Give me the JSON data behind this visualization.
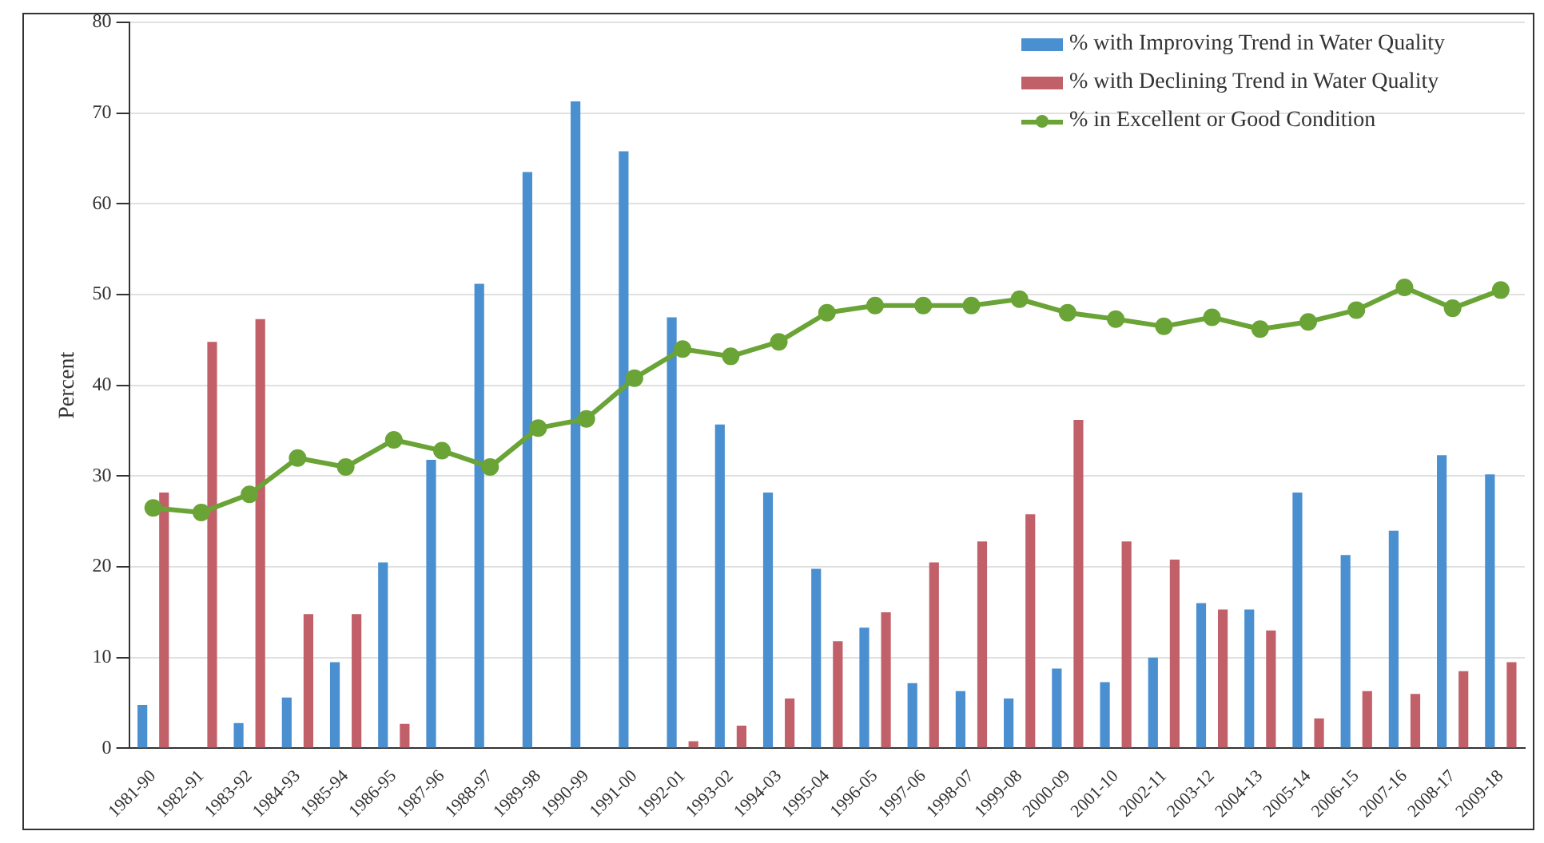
{
  "chart_data": {
    "type": "bar",
    "ylabel": "Percent",
    "categories": [
      "1981-90",
      "1982-91",
      "1983-92",
      "1984-93",
      "1985-94",
      "1986-95",
      "1987-96",
      "1988-97",
      "1989-98",
      "1990-99",
      "1991-00",
      "1992-01",
      "1993-02",
      "1994-03",
      "1995-04",
      "1996-05",
      "1997-06",
      "1998-07",
      "1999-08",
      "2000-09",
      "2001-10",
      "2002-11",
      "2003-12",
      "2004-13",
      "2005-14",
      "2006-15",
      "2007-16",
      "2008-17",
      "2009-18"
    ],
    "series": [
      {
        "name": "% with Improving Trend in Water Quality",
        "color": "#4a8fd0",
        "values": [
          4.8,
          0,
          2.8,
          5.6,
          9.5,
          20.5,
          31.8,
          51.2,
          63.5,
          71.3,
          65.8,
          47.5,
          35.7,
          28.2,
          19.8,
          13.3,
          7.2,
          6.3,
          5.5,
          8.8,
          7.3,
          10,
          16,
          15.3,
          28.2,
          21.3,
          24,
          32.3,
          30.2
        ]
      },
      {
        "name": "% with Declining Trend in Water Quality",
        "color": "#c2606a",
        "values": [
          28.2,
          44.8,
          47.3,
          14.8,
          14.8,
          2.7,
          0,
          0,
          0,
          0,
          0,
          0.8,
          2.5,
          5.5,
          11.8,
          15,
          20.5,
          22.8,
          25.8,
          36.2,
          22.8,
          20.8,
          15.3,
          13,
          3.3,
          6.3,
          6,
          8.5,
          9.5
        ]
      },
      {
        "name": "% in Excellent or Good Condition",
        "type": "line",
        "color": "#6aa336",
        "values": [
          26.5,
          26,
          28,
          32,
          31,
          34,
          32.8,
          31,
          35.3,
          36.3,
          40.8,
          44,
          43.2,
          44.8,
          48,
          48.8,
          48.8,
          48.8,
          49.5,
          48,
          47.3,
          46.5,
          47.5,
          46.2,
          47,
          48.3,
          50.8,
          48.5,
          50.5
        ]
      }
    ],
    "ylim": [
      0,
      80
    ],
    "yticks": [
      0,
      10,
      20,
      30,
      40,
      50,
      60,
      70,
      80
    ],
    "grid": "y",
    "legend": "top right",
    "marker": "circle"
  }
}
